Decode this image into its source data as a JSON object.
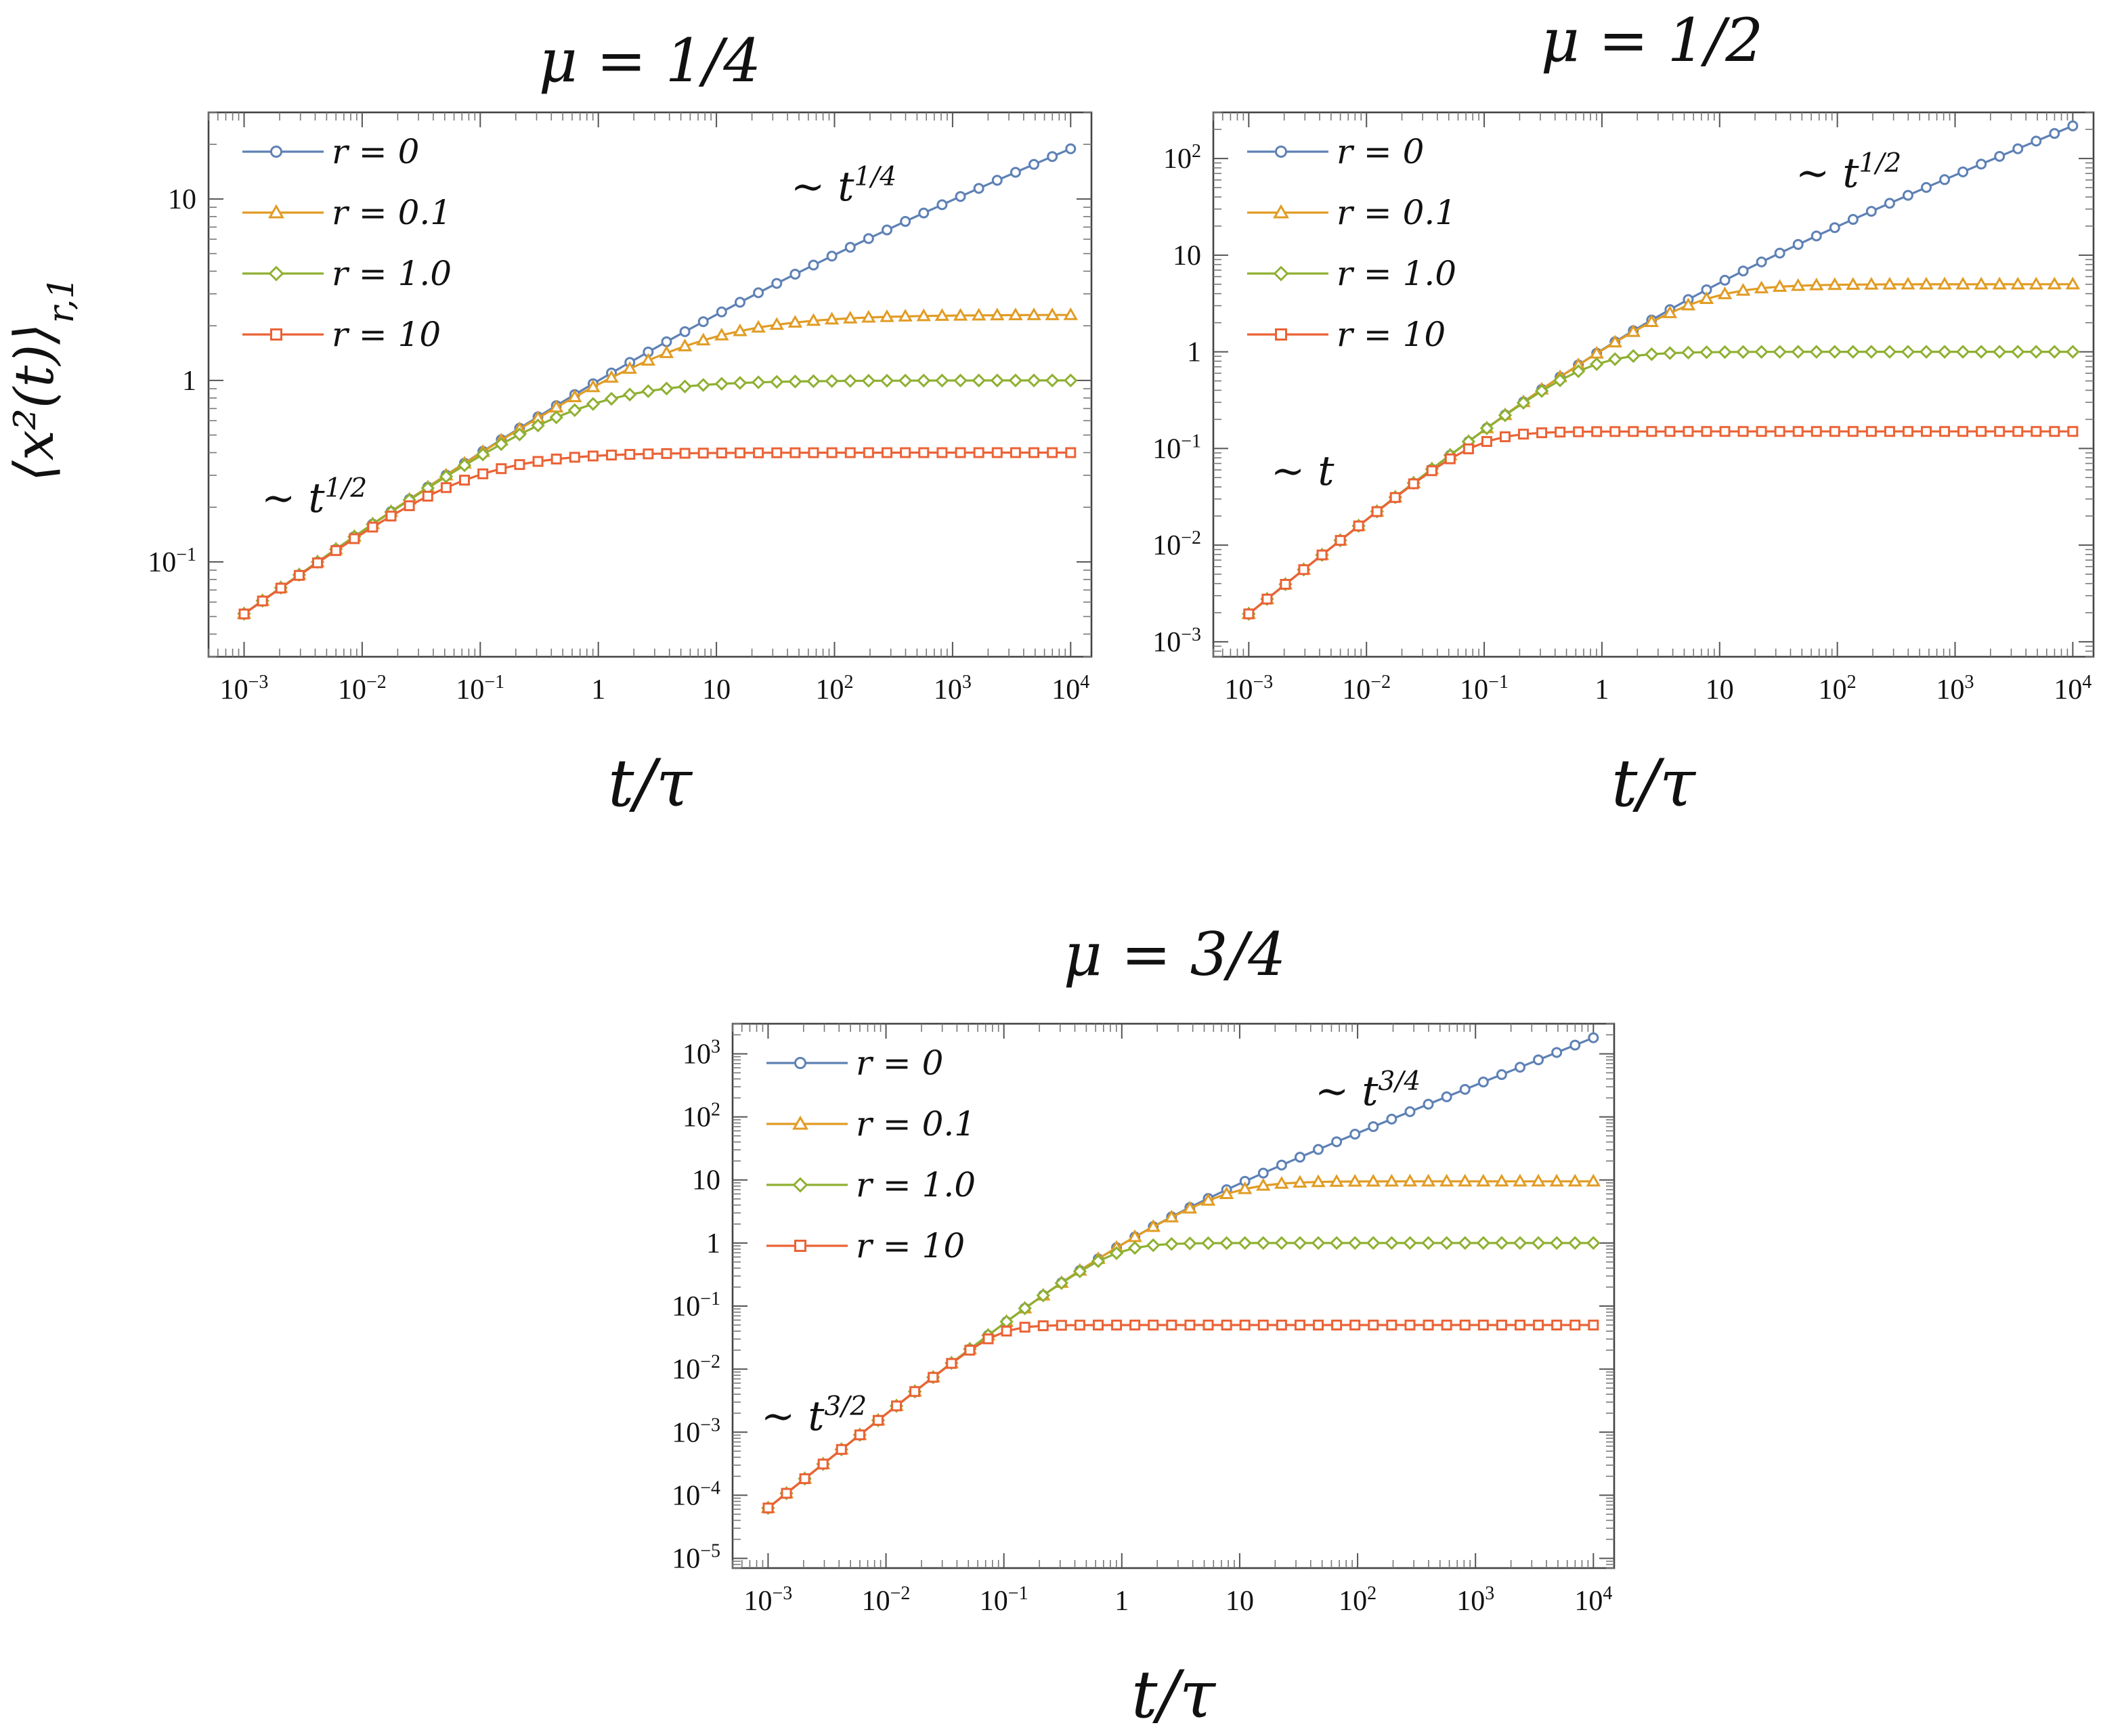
{
  "y_axis_label": "⟨x²(t)⟩_{r,1}",
  "colors": {
    "r0": "#5E81B5",
    "r01": "#E19C24",
    "r1": "#8FB032",
    "r10": "#EB6235"
  },
  "chart_data": [
    {
      "type": "line",
      "title": "μ = 1/4",
      "xlabel": "t/τ",
      "ylabel": "⟨x²(t)⟩_{r,1}",
      "x_scale": "log",
      "y_scale": "log",
      "xlim": [
        0.0005,
        15000
      ],
      "ylim": [
        0.03,
        30
      ],
      "x_ticks": [
        "10⁻³",
        "10⁻²",
        "10⁻¹",
        "1",
        "10",
        "10²",
        "10³",
        "10⁴"
      ],
      "y_ticks": [
        "10⁻¹",
        "1",
        "10"
      ],
      "mu": 0.25,
      "series": [
        {
          "name": "r = 0",
          "marker": "circle",
          "r": 0
        },
        {
          "name": "r = 0.1",
          "marker": "triangle",
          "r": 0.1
        },
        {
          "name": "r = 1.0",
          "marker": "diamond",
          "r": 1.0
        },
        {
          "name": "r = 10",
          "marker": "square",
          "r": 10
        }
      ],
      "summary_values": {
        "t_0.001": 0.06,
        "r0_t_10000": 21,
        "r0.1_plateau": 2.3,
        "r1.0_plateau": 1.0,
        "r10_plateau": 0.4
      },
      "annotations": [
        {
          "text": "∼ t^{1/2}",
          "anchor": "short-time",
          "place": "lower-left"
        },
        {
          "text": "∼ t^{1/4}",
          "anchor": "long-time",
          "place": "upper-right"
        }
      ]
    },
    {
      "type": "line",
      "title": "μ = 1/2",
      "xlabel": "t/τ",
      "ylabel": "",
      "x_scale": "log",
      "y_scale": "log",
      "xlim": [
        0.0005,
        15000
      ],
      "ylim": [
        0.0007,
        300
      ],
      "x_ticks": [
        "10⁻³",
        "10⁻²",
        "10⁻¹",
        "1",
        "10",
        "10²",
        "10³",
        "10⁴"
      ],
      "y_ticks": [
        "10⁻³",
        "10⁻²",
        "10⁻¹",
        "1",
        "10",
        "10²"
      ],
      "mu": 0.5,
      "series": [
        {
          "name": "r = 0",
          "marker": "circle",
          "r": 0
        },
        {
          "name": "r = 0.1",
          "marker": "triangle",
          "r": 0.1
        },
        {
          "name": "r = 1.0",
          "marker": "diamond",
          "r": 1.0
        },
        {
          "name": "r = 10",
          "marker": "square",
          "r": 10
        }
      ],
      "summary_values": {
        "t_0.001": 0.002,
        "r0_t_10000": 220,
        "r0.1_plateau": 5.0,
        "r1.0_plateau": 1.0,
        "r10_plateau": 0.15
      },
      "annotations": [
        {
          "text": "∼ t",
          "anchor": "short-time",
          "place": "lower-left"
        },
        {
          "text": "∼ t^{1/2}",
          "anchor": "long-time",
          "place": "upper-right"
        }
      ]
    },
    {
      "type": "line",
      "title": "μ = 3/4",
      "xlabel": "t/τ",
      "ylabel": "",
      "x_scale": "log",
      "y_scale": "log",
      "xlim": [
        0.0005,
        15000
      ],
      "ylim": [
        7e-06,
        3000
      ],
      "x_ticks": [
        "10⁻³",
        "10⁻²",
        "10⁻¹",
        "1",
        "10",
        "10²",
        "10³",
        "10⁴"
      ],
      "y_ticks": [
        "10⁻⁵",
        "10⁻⁴",
        "10⁻³",
        "10⁻²",
        "10⁻¹",
        "1",
        "10",
        "10²",
        "10³"
      ],
      "mu": 0.75,
      "series": [
        {
          "name": "r = 0",
          "marker": "circle",
          "r": 0
        },
        {
          "name": "r = 0.1",
          "marker": "triangle",
          "r": 0.1
        },
        {
          "name": "r = 1.0",
          "marker": "diamond",
          "r": 1.0
        },
        {
          "name": "r = 10",
          "marker": "square",
          "r": 10
        }
      ],
      "summary_values": {
        "t_0.001": 4e-05,
        "r0_t_10000": 1800,
        "r0.1_plateau": 9.5,
        "r1.0_plateau": 1.0,
        "r10_plateau": 0.05
      },
      "annotations": [
        {
          "text": "∼ t^{3/2}",
          "anchor": "short-time",
          "place": "lower-left"
        },
        {
          "text": "∼ t^{3/4}",
          "anchor": "long-time",
          "place": "upper-right"
        }
      ]
    }
  ]
}
